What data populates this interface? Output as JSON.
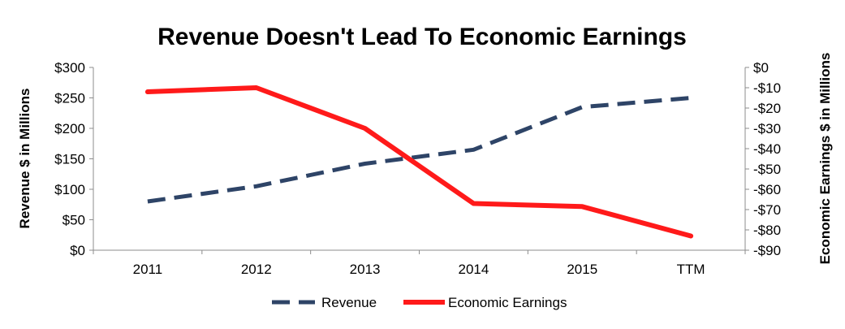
{
  "chart_data": {
    "type": "line",
    "title": "Revenue Doesn't Lead To Economic Earnings",
    "categories": [
      "2011",
      "2012",
      "2013",
      "2014",
      "2015",
      "TTM"
    ],
    "y_left": {
      "label": "Revenue $ in Millions",
      "range": [
        0,
        300
      ],
      "ticks": [
        0,
        50,
        100,
        150,
        200,
        250,
        300
      ],
      "tick_labels": [
        "$0",
        "$50",
        "$100",
        "$150",
        "$200",
        "$250",
        "$300"
      ]
    },
    "y_right": {
      "label": "Economic Earnings $ in Millions",
      "range": [
        -90,
        0
      ],
      "ticks": [
        0,
        -10,
        -20,
        -30,
        -40,
        -50,
        -60,
        -70,
        -80,
        -90
      ],
      "tick_labels": [
        "$0",
        "-$10",
        "-$20",
        "-$30",
        "-$40",
        "-$50",
        "-$60",
        "-$70",
        "-$80",
        "-$90"
      ]
    },
    "series": [
      {
        "name": "Revenue",
        "axis": "left",
        "style": "dashed",
        "color": "#2e4467",
        "values": [
          80,
          105,
          142,
          165,
          235,
          250
        ]
      },
      {
        "name": "Economic Earnings",
        "axis": "right",
        "style": "solid",
        "color": "#ff1a1a",
        "values": [
          -12,
          -10,
          -30,
          -67,
          -68.5,
          -83
        ]
      }
    ],
    "grid": false,
    "legend_position": "bottom"
  }
}
